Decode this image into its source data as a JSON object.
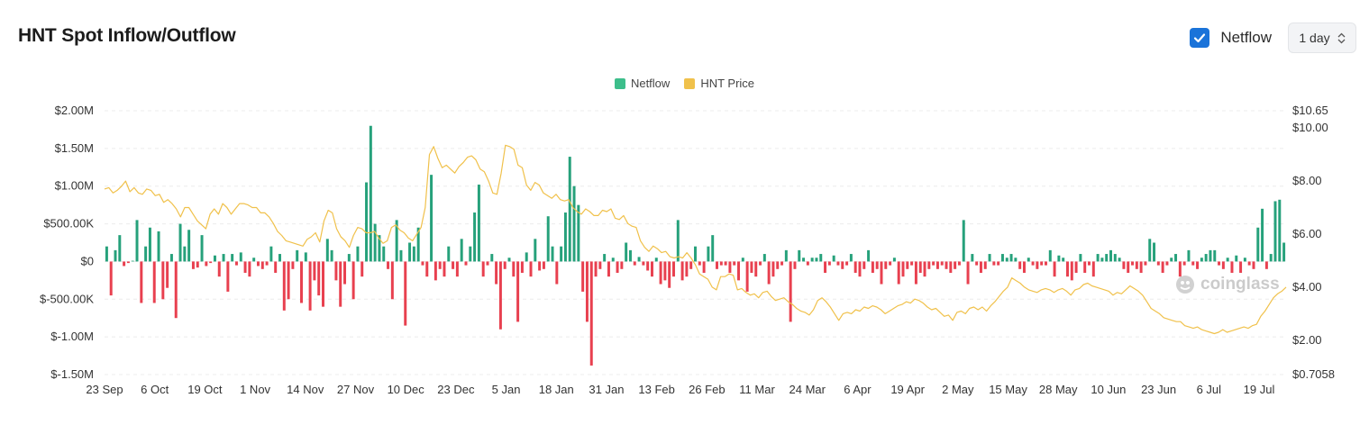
{
  "header": {
    "title": "HNT Spot Inflow/Outflow",
    "checkbox_label": "Netflow",
    "checkbox_checked": true,
    "interval": "1 day"
  },
  "colors": {
    "inflow": "#26a17b",
    "outflow": "#e8404f",
    "price": "#f0c14b",
    "legend_netflow": "#3dbe8b",
    "legend_price": "#f0c14b",
    "checkbox": "#1a73d9"
  },
  "watermark": "coinglass",
  "chart_data": {
    "type": "bar",
    "legend": [
      "Netflow",
      "HNT Price"
    ],
    "legend_position": "top-center",
    "grid": true,
    "x_tick_labels": [
      "23 Sep",
      "6 Oct",
      "19 Oct",
      "1 Nov",
      "14 Nov",
      "27 Nov",
      "10 Dec",
      "23 Dec",
      "5 Jan",
      "18 Jan",
      "31 Jan",
      "13 Feb",
      "26 Feb",
      "11 Mar",
      "24 Mar",
      "6 Apr",
      "19 Apr",
      "2 May",
      "15 May",
      "28 May",
      "10 Jun",
      "23 Jun",
      "6 Jul",
      "19 Jul"
    ],
    "left_axis": {
      "ticks": [
        2000000,
        1500000,
        1000000,
        500000,
        0,
        -500000,
        -1000000,
        -1500000
      ],
      "tick_labels": [
        "$2.00M",
        "$1.50M",
        "$1.00M",
        "$500.00K",
        "$0",
        "$-500.00K",
        "$-1.00M",
        "$-1.50M"
      ],
      "range": [
        -1500000,
        2000000
      ]
    },
    "right_axis": {
      "ticks": [
        10.65,
        10.0,
        8.0,
        6.0,
        4.0,
        2.0,
        0.7058
      ],
      "tick_labels": [
        "$10.65",
        "$10.00",
        "$8.00",
        "$6.00",
        "$4.00",
        "$2.00",
        "$0.7058"
      ],
      "range": [
        0.7058,
        10.65
      ]
    },
    "series": [
      {
        "name": "Netflow",
        "kind": "bar",
        "values": [
          200000,
          -450000,
          150000,
          350000,
          -60000,
          -20000,
          10000,
          550000,
          -550000,
          200000,
          450000,
          -550000,
          400000,
          -500000,
          -350000,
          100000,
          -750000,
          500000,
          200000,
          420000,
          -100000,
          -80000,
          350000,
          -60000,
          -20000,
          80000,
          -200000,
          100000,
          -400000,
          100000,
          -50000,
          120000,
          -150000,
          -200000,
          50000,
          -60000,
          -100000,
          -50000,
          200000,
          -150000,
          100000,
          -650000,
          -500000,
          -100000,
          150000,
          -550000,
          120000,
          -650000,
          -250000,
          -450000,
          -600000,
          300000,
          150000,
          -250000,
          -600000,
          -300000,
          100000,
          -500000,
          200000,
          -200000,
          1050000,
          1800000,
          500000,
          350000,
          200000,
          -100000,
          -500000,
          550000,
          150000,
          -850000,
          250000,
          200000,
          450000,
          -50000,
          -200000,
          1150000,
          -250000,
          -100000,
          -200000,
          200000,
          -100000,
          -200000,
          300000,
          -50000,
          200000,
          650000,
          1020000,
          -200000,
          -50000,
          100000,
          -300000,
          -900000,
          -100000,
          50000,
          -200000,
          -800000,
          -150000,
          120000,
          -200000,
          300000,
          -120000,
          -100000,
          600000,
          200000,
          -300000,
          200000,
          650000,
          1390000,
          1000000,
          750000,
          -400000,
          -800000,
          -1380000,
          -200000,
          -100000,
          100000,
          -200000,
          50000,
          -150000,
          -100000,
          250000,
          150000,
          -50000,
          60000,
          -50000,
          -120000,
          -200000,
          50000,
          -300000,
          -250000,
          -350000,
          -200000,
          550000,
          -250000,
          -200000,
          -100000,
          200000,
          -50000,
          -150000,
          200000,
          350000,
          -100000,
          -50000,
          -50000,
          -150000,
          -50000,
          -250000,
          50000,
          -400000,
          -150000,
          -200000,
          -50000,
          100000,
          -300000,
          -200000,
          -100000,
          -50000,
          150000,
          -800000,
          -100000,
          150000,
          50000,
          -50000,
          50000,
          50000,
          100000,
          -150000,
          -50000,
          80000,
          -50000,
          -100000,
          -50000,
          100000,
          -150000,
          -200000,
          -100000,
          150000,
          -150000,
          -100000,
          -300000,
          -100000,
          -50000,
          50000,
          -300000,
          -200000,
          -100000,
          -50000,
          -300000,
          -150000,
          -200000,
          -100000,
          -50000,
          -100000,
          -50000,
          -100000,
          -150000,
          -100000,
          -50000,
          550000,
          -300000,
          100000,
          -50000,
          -150000,
          -100000,
          100000,
          -50000,
          -50000,
          100000,
          50000,
          100000,
          50000,
          -100000,
          -150000,
          50000,
          -50000,
          -100000,
          -50000,
          -50000,
          150000,
          -200000,
          80000,
          50000,
          -200000,
          -250000,
          -150000,
          100000,
          -150000,
          -50000,
          -200000,
          100000,
          50000,
          100000,
          150000,
          100000,
          50000,
          -100000,
          -150000,
          -50000,
          -100000,
          -150000,
          -50000,
          300000,
          250000,
          -50000,
          -150000,
          -50000,
          50000,
          100000,
          -200000,
          -50000,
          150000,
          -50000,
          -100000,
          50000,
          100000,
          150000,
          150000,
          -50000,
          -100000,
          50000,
          -150000,
          80000,
          -150000,
          50000,
          -50000,
          -100000,
          450000,
          700000,
          -100000,
          100000,
          800000,
          820000,
          250000
        ]
      },
      {
        "name": "HNT Price",
        "kind": "line",
        "axis": "right",
        "values": [
          7.7,
          7.75,
          7.55,
          7.65,
          7.8,
          8.0,
          7.6,
          7.75,
          7.55,
          7.5,
          7.7,
          7.65,
          7.45,
          7.5,
          7.2,
          7.3,
          7.15,
          6.95,
          6.65,
          7.0,
          7.0,
          6.75,
          6.5,
          6.35,
          6.2,
          6.75,
          6.95,
          6.75,
          7.15,
          7.0,
          6.75,
          6.95,
          7.15,
          7.15,
          7.1,
          7.0,
          7.0,
          6.8,
          6.8,
          6.65,
          6.4,
          6.1,
          5.95,
          5.75,
          5.7,
          5.65,
          5.6,
          5.55,
          5.8,
          5.9,
          6.05,
          5.7,
          6.5,
          6.9,
          6.8,
          6.2,
          5.9,
          5.75,
          5.5,
          5.95,
          6.25,
          6.2,
          6.05,
          6.05,
          6.1,
          5.85,
          5.65,
          5.75,
          6.25,
          6.35,
          6.15,
          6.05,
          5.85,
          5.75,
          6.0,
          6.25,
          7.0,
          9.0,
          9.3,
          8.85,
          8.5,
          8.6,
          8.45,
          8.3,
          8.55,
          8.7,
          8.9,
          8.95,
          8.8,
          8.45,
          8.35,
          8.0,
          7.55,
          7.5,
          8.3,
          9.35,
          9.3,
          9.2,
          8.6,
          8.5,
          7.85,
          7.65,
          7.95,
          7.85,
          7.55,
          7.45,
          7.35,
          7.5,
          7.3,
          7.25,
          7.3,
          7.0,
          6.85,
          6.75,
          6.95,
          6.85,
          6.7,
          6.7,
          6.9,
          6.85,
          6.95,
          6.6,
          6.55,
          6.7,
          6.4,
          6.3,
          6.25,
          5.75,
          5.5,
          5.35,
          5.55,
          5.45,
          5.3,
          5.35,
          5.15,
          5.1,
          5.15,
          5.1,
          5.3,
          5.1,
          4.85,
          4.5,
          4.4,
          4.3,
          4.0,
          3.9,
          4.4,
          4.4,
          4.5,
          4.45,
          3.9,
          3.95,
          3.8,
          3.7,
          3.75,
          3.6,
          3.8,
          3.85,
          3.65,
          3.5,
          3.55,
          3.6,
          3.45,
          3.35,
          3.2,
          3.1,
          3.05,
          2.95,
          3.15,
          3.5,
          3.6,
          3.45,
          3.25,
          3.0,
          2.75,
          3.0,
          3.05,
          3.0,
          3.15,
          3.1,
          3.25,
          3.2,
          3.3,
          3.25,
          3.15,
          3.0,
          3.1,
          3.2,
          3.3,
          3.35,
          3.45,
          3.4,
          3.55,
          3.5,
          3.4,
          3.25,
          3.15,
          3.2,
          3.05,
          2.9,
          2.95,
          2.75,
          3.05,
          3.1,
          3.0,
          3.2,
          3.25,
          3.15,
          3.25,
          3.1,
          3.3,
          3.45,
          3.65,
          3.85,
          4.0,
          4.35,
          4.25,
          4.15,
          4.0,
          3.9,
          3.85,
          3.8,
          3.9,
          3.95,
          3.9,
          3.8,
          3.9,
          3.95,
          3.85,
          3.7,
          3.9,
          3.95,
          4.1,
          4.15,
          4.05,
          4.0,
          3.95,
          3.9,
          3.85,
          3.7,
          3.8,
          3.75,
          3.9,
          4.05,
          3.95,
          3.85,
          3.7,
          3.45,
          3.2,
          3.1,
          3.0,
          2.85,
          2.8,
          2.75,
          2.7,
          2.7,
          2.55,
          2.5,
          2.45,
          2.5,
          2.4,
          2.35,
          2.3,
          2.25,
          2.3,
          2.4,
          2.3,
          2.35,
          2.4,
          2.45,
          2.5,
          2.45,
          2.55,
          2.6,
          2.9,
          3.1,
          3.35,
          3.6,
          3.75,
          3.85,
          4.0
        ]
      }
    ]
  }
}
